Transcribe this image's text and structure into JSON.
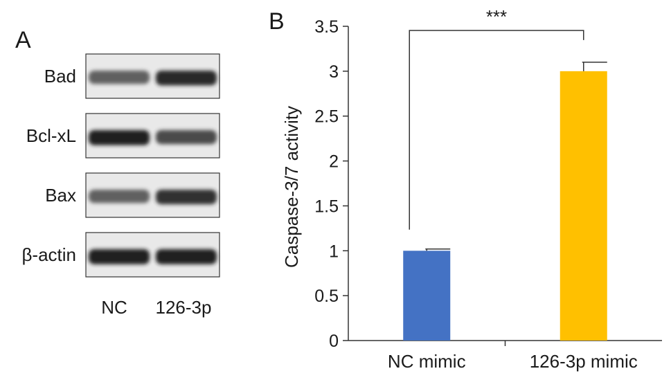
{
  "panel_a": {
    "letter": "A",
    "rows": [
      {
        "label": "Bad",
        "bands": [
          0.55,
          0.9
        ]
      },
      {
        "label": "Bcl-xL",
        "bands": [
          0.95,
          0.7
        ]
      },
      {
        "label": "Bax",
        "bands": [
          0.55,
          0.85
        ]
      },
      {
        "label": "β-actin",
        "bands": [
          0.95,
          0.95
        ]
      }
    ],
    "lanes": [
      "NC",
      "126-3p"
    ]
  },
  "chart_data": {
    "type": "bar",
    "panel_letter": "B",
    "categories": [
      "NC mimic",
      "126-3p mimic"
    ],
    "values": [
      1.0,
      3.0
    ],
    "errors": [
      0.02,
      0.1
    ],
    "colors": [
      "#4472c4",
      "#ffc000"
    ],
    "ylabel": "Caspase-3/7 activity",
    "xlabel": "",
    "ylim": [
      0,
      3.5
    ],
    "yticks": [
      "0",
      "0.5",
      "1",
      "1.5",
      "2",
      "2.5",
      "3",
      "3.5"
    ],
    "significance": {
      "pair": [
        0,
        1
      ],
      "label": "***"
    },
    "grid": false
  }
}
